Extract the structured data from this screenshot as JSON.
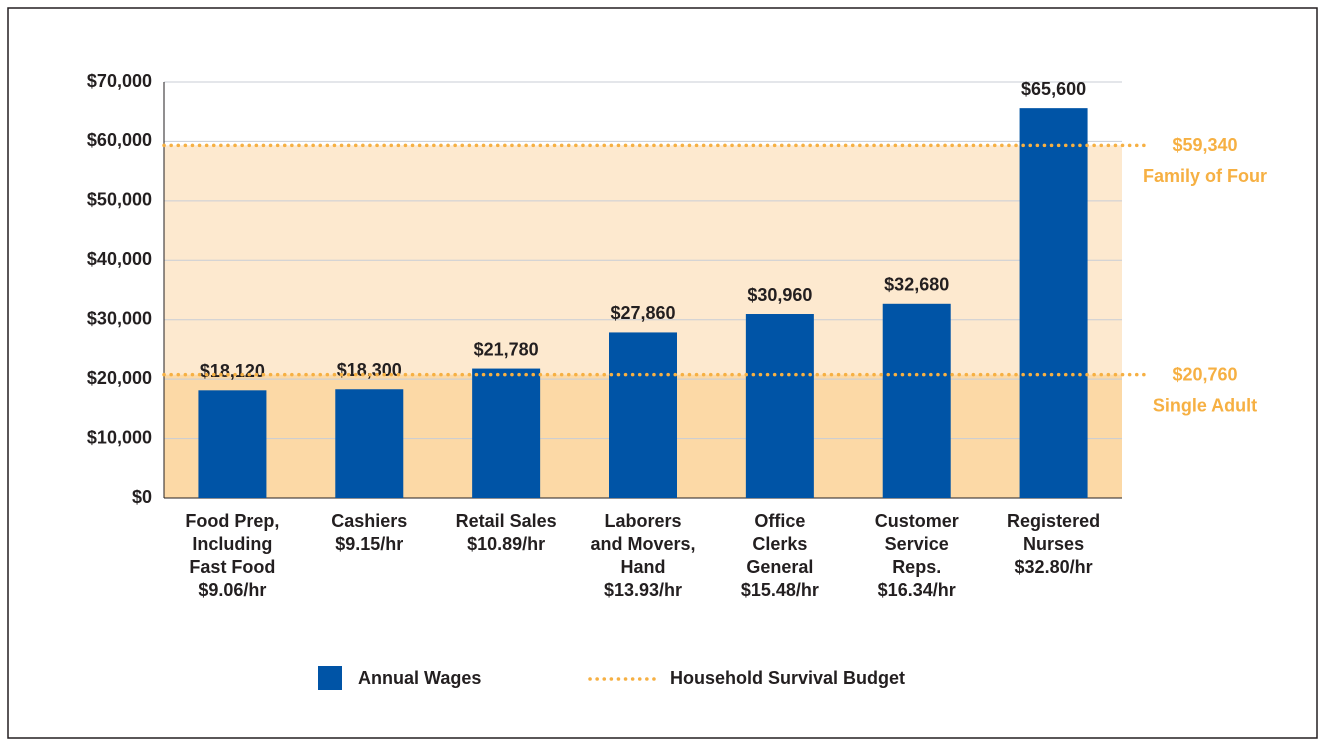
{
  "chart_data": {
    "type": "bar",
    "categories": [
      [
        "Food Prep,",
        "Including",
        "Fast Food",
        "$9.06/hr"
      ],
      [
        "Cashiers",
        "$9.15/hr"
      ],
      [
        "Retail Sales",
        "$10.89/hr"
      ],
      [
        "Laborers",
        "and Movers,",
        "Hand",
        "$13.93/hr"
      ],
      [
        "Office",
        "Clerks",
        "General",
        "$15.48/hr"
      ],
      [
        "Customer",
        "Service",
        "Reps.",
        "$16.34/hr"
      ],
      [
        "Registered",
        "Nurses",
        "$32.80/hr"
      ]
    ],
    "series": [
      {
        "name": "Annual Wages",
        "color": "#0054a6",
        "values": [
          18120,
          18300,
          21780,
          27860,
          30960,
          32680,
          65600
        ],
        "value_labels": [
          "$18,120",
          "$18,300",
          "$21,780",
          "$27,860",
          "$30,960",
          "$32,680",
          "$65,600"
        ]
      }
    ],
    "reference_lines": [
      {
        "value": 59340,
        "label": "$59,340",
        "name": "Family of Four",
        "band_color": "#fde9cf"
      },
      {
        "value": 20760,
        "label": "$20,760",
        "name": "Single Adult",
        "band_color": "#fcd9a6"
      }
    ],
    "reference_color": "#f6b043",
    "reference_legend": "Household Survival Budget",
    "ylim": [
      0,
      70000
    ],
    "yticks": [
      {
        "value": 0,
        "label": "$0"
      },
      {
        "value": 10000,
        "label": "$10,000"
      },
      {
        "value": 20000,
        "label": "$20,000"
      },
      {
        "value": 30000,
        "label": "$30,000"
      },
      {
        "value": 40000,
        "label": "$40,000"
      },
      {
        "value": 50000,
        "label": "$50,000"
      },
      {
        "value": 60000,
        "label": "$60,000"
      },
      {
        "value": 70000,
        "label": "$70,000"
      }
    ],
    "grid": true
  }
}
